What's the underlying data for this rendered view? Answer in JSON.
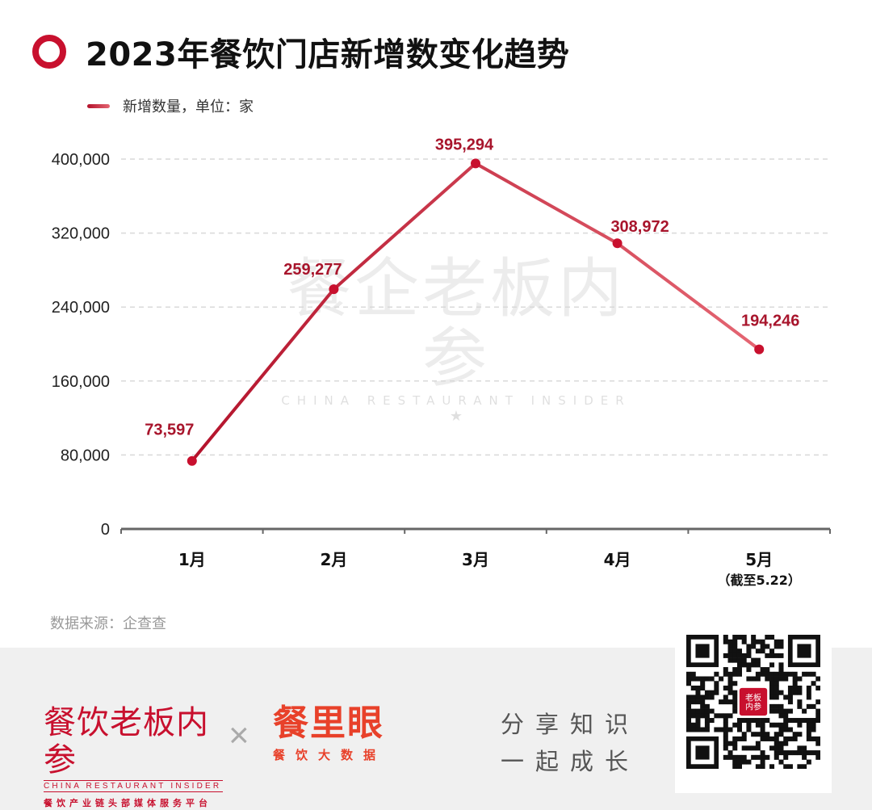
{
  "title": "2023年餐饮门店新增数变化趋势",
  "legend_label": "新增数量，单位：家",
  "source": "数据来源：企查查",
  "watermark": {
    "cn": "餐企老板内参",
    "en": "CHINA RESTAURANT INSIDER"
  },
  "footer": {
    "brand1_cn": "餐饮老板内参",
    "brand1_en": "CHINA RESTAURANT INSIDER",
    "brand1_sub": "餐饮产业链头部媒体服务平台",
    "cross": "×",
    "brand2_cn": "餐里眼",
    "brand2_sub": "餐饮大数据",
    "slogan_line1": "分享知识",
    "slogan_line2": "一起成长",
    "qr_logo": "老板内参"
  },
  "colors": {
    "accent": "#c8102e",
    "line_start": "#b3122b",
    "line_end": "#e46572",
    "label": "#a8152c",
    "grid": "#d9d9d9",
    "axis": "#666666"
  },
  "chart_data": {
    "type": "line",
    "categories": [
      "1月",
      "2月",
      "3月",
      "4月",
      "5月"
    ],
    "category_notes": [
      "",
      "",
      "",
      "",
      "（截至5.22）"
    ],
    "series": [
      {
        "name": "新增数量，单位：家",
        "values": [
          73597,
          259277,
          395294,
          308972,
          194246
        ],
        "labels": [
          "73,597",
          "259,277",
          "395,294",
          "308,972",
          "194,246"
        ]
      }
    ],
    "yticks": [
      0,
      80000,
      160000,
      240000,
      320000,
      400000
    ],
    "ytick_labels": [
      "0",
      "80,000",
      "160,000",
      "240,000",
      "320,000",
      "400,000"
    ],
    "ylim": [
      0,
      400000
    ],
    "grid": true,
    "legend_position": "top-left"
  }
}
